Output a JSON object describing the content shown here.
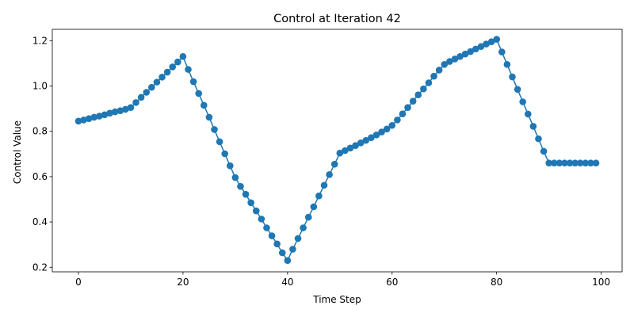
{
  "chart_data": {
    "type": "line",
    "title": "Control at Iteration 42",
    "xlabel": "Time Step",
    "ylabel": "Control Value",
    "xlim": [
      -5,
      104
    ],
    "ylim": [
      0.18,
      1.25
    ],
    "xticks": [
      0,
      20,
      40,
      60,
      80,
      100
    ],
    "yticks": [
      0.2,
      0.4,
      0.6,
      0.8,
      1.0,
      1.2
    ],
    "xtick_labels": [
      "0",
      "20",
      "40",
      "60",
      "80",
      "100"
    ],
    "ytick_labels": [
      "0.2",
      "0.4",
      "0.6",
      "0.8",
      "1.0",
      "1.2"
    ],
    "grid": false,
    "marker": "circle",
    "series": [
      {
        "color": "#1f77b4",
        "x": [
          0,
          1,
          2,
          3,
          4,
          5,
          6,
          7,
          8,
          9,
          10,
          11,
          12,
          13,
          14,
          15,
          16,
          17,
          18,
          19,
          20,
          21,
          22,
          23,
          24,
          25,
          26,
          27,
          28,
          29,
          30,
          31,
          32,
          33,
          34,
          35,
          36,
          37,
          38,
          39,
          40,
          41,
          42,
          43,
          44,
          45,
          46,
          47,
          48,
          49,
          50,
          51,
          52,
          53,
          54,
          55,
          56,
          57,
          58,
          59,
          60,
          61,
          62,
          63,
          64,
          65,
          66,
          67,
          68,
          69,
          70,
          71,
          72,
          73,
          74,
          75,
          76,
          77,
          78,
          79,
          80,
          81,
          82,
          83,
          84,
          85,
          86,
          87,
          88,
          89,
          90,
          91,
          92,
          93,
          94,
          95,
          96,
          97,
          98,
          99
        ],
        "y": [
          0.845,
          0.85,
          0.856,
          0.862,
          0.867,
          0.873,
          0.88,
          0.886,
          0.891,
          0.897,
          0.905,
          0.927,
          0.95,
          0.972,
          0.994,
          1.017,
          1.039,
          1.061,
          1.084,
          1.106,
          1.13,
          1.073,
          1.019,
          0.967,
          0.915,
          0.862,
          0.808,
          0.754,
          0.701,
          0.648,
          0.596,
          0.557,
          0.522,
          0.485,
          0.449,
          0.413,
          0.374,
          0.339,
          0.303,
          0.264,
          0.23,
          0.28,
          0.327,
          0.374,
          0.421,
          0.467,
          0.515,
          0.562,
          0.609,
          0.655,
          0.704,
          0.715,
          0.726,
          0.737,
          0.749,
          0.76,
          0.772,
          0.784,
          0.797,
          0.81,
          0.826,
          0.85,
          0.877,
          0.905,
          0.933,
          0.961,
          0.987,
          1.014,
          1.043,
          1.07,
          1.095,
          1.108,
          1.119,
          1.13,
          1.141,
          1.152,
          1.163,
          1.174,
          1.185,
          1.195,
          1.206,
          1.15,
          1.095,
          1.04,
          0.985,
          0.93,
          0.876,
          0.822,
          0.767,
          0.712,
          0.66,
          0.66,
          0.66,
          0.66,
          0.66,
          0.66,
          0.66,
          0.66,
          0.66,
          0.66
        ]
      }
    ]
  }
}
